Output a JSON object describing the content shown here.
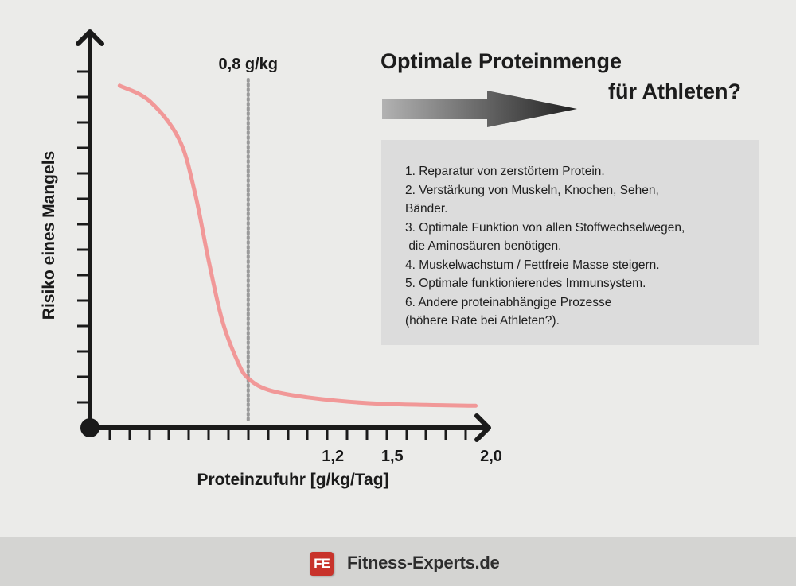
{
  "title": {
    "line1": "Optimale Proteinmenge",
    "line2": "für Athleten?"
  },
  "info_box": {
    "items": [
      "1. Reparatur von zerstörtem Protein.",
      "2. Verstärkung von Muskeln, Knochen, Sehen,",
      "Bänder.",
      "3. Optimale Funktion von allen Stoffwechselwegen,",
      " die Aminosäuren benötigen.",
      "4. Muskelwachstum / Fettfreie Masse steigern.",
      "5. Optimale funktionierendes Immunsystem.",
      "6. Andere proteinabhängige Prozesse",
      "(höhere Rate bei Athleten?)."
    ]
  },
  "footer": {
    "logo_mark": "FE",
    "brand": "Fitness-Experts.de"
  },
  "colors": {
    "curve": "#f28a8a",
    "axis": "#1a1a1a",
    "marker_line": "#9a9a9a",
    "background": "#ebebe9",
    "info_box": "#dcdcdc",
    "footer": "#d4d4d2",
    "logo": "#c8332b"
  },
  "chart_data": {
    "type": "line",
    "xlabel": "Proteinzufuhr [g/kg/Tag]",
    "ylabel": "Risiko eines Mangels",
    "xlim": [
      0,
      2.0
    ],
    "ylim": [
      0,
      1
    ],
    "x_tick_labels": [
      {
        "x": 1.2,
        "label": "1,2"
      },
      {
        "x": 1.5,
        "label": "1,5"
      },
      {
        "x": 2.0,
        "label": "2,0"
      }
    ],
    "x_ticks_every": 0.1,
    "y_ticks_every": 0.067,
    "grid": false,
    "reference_line": {
      "x": 0.8,
      "label": "0,8 g/kg",
      "style": "dotted"
    },
    "series": [
      {
        "x": [
          0.15,
          0.3,
          0.45,
          0.53,
          0.6,
          0.67,
          0.75,
          0.8,
          0.9,
          1.1,
          1.4,
          1.7,
          1.95
        ],
        "y": [
          0.9,
          0.86,
          0.76,
          0.62,
          0.44,
          0.28,
          0.17,
          0.13,
          0.1,
          0.08,
          0.065,
          0.06,
          0.058
        ]
      }
    ]
  }
}
